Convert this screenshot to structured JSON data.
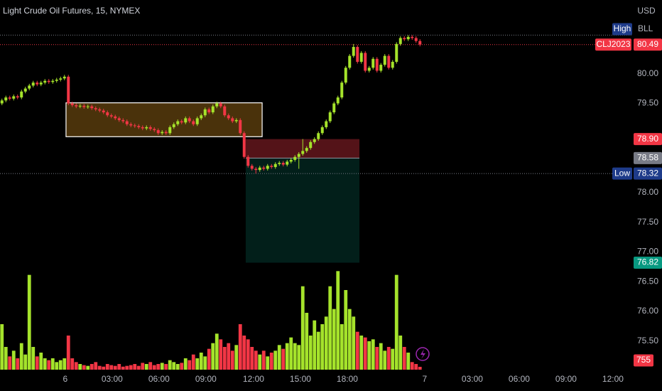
{
  "chart_data": {
    "type": "candlestick",
    "title": "Light Crude Oil Futures, 15, NYMEX",
    "currency": "USD",
    "xlim": [
      0,
      162
    ],
    "xticks": [
      {
        "value": 16.7,
        "label": "6"
      },
      {
        "value": 28.7,
        "label": "03:00"
      },
      {
        "value": 40.7,
        "label": "06:00"
      },
      {
        "value": 52.7,
        "label": "09:00"
      },
      {
        "value": 64.9,
        "label": "12:00"
      },
      {
        "value": 76.9,
        "label": "15:00"
      },
      {
        "value": 88.9,
        "label": "18:00"
      },
      {
        "value": 108.7,
        "label": "7"
      },
      {
        "value": 120.9,
        "label": "03:00"
      },
      {
        "value": 132.9,
        "label": "06:00"
      },
      {
        "value": 144.9,
        "label": "09:00"
      },
      {
        "value": 156.9,
        "label": "12:00"
      }
    ],
    "ylim": [
      75.02,
      81.24
    ],
    "yticks": [
      {
        "value": 75.5,
        "label": "75.50"
      },
      {
        "value": 76,
        "label": "76.00"
      },
      {
        "value": 76.5,
        "label": "76.50"
      },
      {
        "value": 77,
        "label": "77.00"
      },
      {
        "value": 77.5,
        "label": "77.50"
      },
      {
        "value": 78,
        "label": "78.00"
      },
      {
        "value": 79.5,
        "label": "79.50"
      },
      {
        "value": 80,
        "label": "80.00"
      }
    ],
    "up_color": "#a5e32b",
    "down_color": "#f23645",
    "open": [
      79.5,
      79.55,
      79.6,
      79.58,
      79.62,
      79.6,
      79.7,
      79.75,
      79.8,
      79.85,
      79.82,
      79.85,
      79.88,
      79.86,
      79.88,
      79.9,
      79.92,
      79.95,
      79.5,
      79.47,
      79.45,
      79.46,
      79.44,
      79.45,
      79.42,
      79.4,
      79.38,
      79.35,
      79.3,
      79.28,
      79.25,
      79.22,
      79.2,
      79.15,
      79.13,
      79.12,
      79.1,
      79.08,
      79.1,
      79.07,
      79.05,
      79.0,
      79.02,
      79.0,
      79.1,
      79.15,
      79.2,
      79.18,
      79.25,
      79.2,
      79.15,
      79.25,
      79.3,
      79.4,
      79.35,
      79.45,
      79.5,
      79.45,
      79.3,
      79.25,
      79.2,
      79.22,
      79.0,
      78.6,
      78.45,
      78.4,
      78.38,
      78.42,
      78.4,
      78.45,
      78.43,
      78.48,
      78.5,
      78.47,
      78.52,
      78.55,
      78.6,
      78.65,
      78.7,
      78.75,
      78.85,
      78.9,
      79.0,
      79.1,
      79.2,
      79.35,
      79.5,
      79.6,
      79.85,
      80.1,
      80.3,
      80.45,
      80.2,
      80.35,
      80.05,
      80.1,
      80.25,
      80.05,
      80.15,
      80.3,
      80.1,
      80.2,
      80.5,
      80.6,
      80.58,
      80.62,
      80.6,
      80.55
    ],
    "high": [
      79.58,
      79.63,
      79.63,
      79.65,
      79.65,
      79.73,
      79.78,
      79.83,
      79.88,
      79.88,
      79.88,
      79.91,
      79.91,
      79.91,
      79.93,
      79.95,
      79.98,
      79.98,
      79.53,
      79.5,
      79.49,
      79.49,
      79.48,
      79.48,
      79.45,
      79.43,
      79.41,
      79.38,
      79.33,
      79.31,
      79.28,
      79.25,
      79.23,
      79.18,
      79.16,
      79.15,
      79.13,
      79.13,
      79.13,
      79.1,
      79.08,
      79.05,
      79.05,
      79.13,
      79.18,
      79.23,
      79.23,
      79.28,
      79.28,
      79.23,
      79.28,
      79.33,
      79.43,
      79.43,
      79.48,
      79.53,
      79.53,
      79.48,
      79.33,
      79.28,
      79.25,
      79.25,
      79.03,
      78.63,
      78.48,
      78.43,
      78.45,
      78.45,
      78.48,
      78.48,
      78.51,
      78.53,
      78.53,
      78.55,
      78.58,
      78.63,
      78.68,
      78.9,
      78.78,
      78.88,
      78.93,
      79.03,
      79.13,
      79.23,
      79.38,
      79.53,
      79.63,
      79.88,
      80.13,
      80.33,
      80.5,
      80.48,
      80.38,
      80.38,
      80.13,
      80.28,
      80.28,
      80.18,
      80.33,
      80.33,
      80.23,
      80.53,
      80.63,
      80.63,
      80.65,
      80.65,
      80.63,
      80.58
    ],
    "low": [
      79.47,
      79.52,
      79.55,
      79.55,
      79.57,
      79.57,
      79.67,
      79.72,
      79.77,
      79.79,
      79.79,
      79.82,
      79.83,
      79.83,
      79.85,
      79.87,
      79.89,
      79.47,
      79.44,
      79.42,
      79.42,
      79.41,
      79.41,
      79.39,
      79.37,
      79.35,
      79.32,
      79.27,
      79.25,
      79.22,
      79.19,
      79.17,
      79.12,
      79.1,
      79.09,
      79.07,
      79.05,
      79.05,
      79.04,
      79.02,
      78.97,
      78.97,
      78.97,
      78.97,
      79.07,
      79.12,
      79.15,
      79.15,
      79.17,
      79.12,
      79.12,
      79.22,
      79.27,
      79.32,
      79.32,
      79.42,
      79.42,
      79.27,
      79.22,
      79.17,
      79.17,
      78.97,
      78.57,
      78.42,
      78.37,
      78.32,
      78.35,
      78.37,
      78.37,
      78.4,
      78.4,
      78.45,
      78.44,
      78.44,
      78.49,
      78.52,
      78.4,
      78.62,
      78.67,
      78.72,
      78.82,
      78.87,
      78.97,
      79.07,
      79.17,
      79.32,
      79.47,
      79.57,
      79.82,
      80.07,
      80.27,
      80.17,
      80.17,
      80.02,
      80.02,
      80.07,
      80.02,
      80.02,
      80.12,
      80.07,
      80.07,
      80.17,
      80.47,
      80.55,
      80.55,
      80.57,
      80.52,
      80.46
    ],
    "close": [
      79.55,
      79.6,
      79.58,
      79.62,
      79.6,
      79.7,
      79.75,
      79.8,
      79.85,
      79.82,
      79.85,
      79.88,
      79.86,
      79.88,
      79.9,
      79.92,
      79.95,
      79.5,
      79.47,
      79.45,
      79.46,
      79.44,
      79.45,
      79.42,
      79.4,
      79.38,
      79.35,
      79.3,
      79.28,
      79.25,
      79.22,
      79.2,
      79.15,
      79.13,
      79.12,
      79.1,
      79.08,
      79.1,
      79.07,
      79.05,
      79.0,
      79.02,
      79.0,
      79.1,
      79.15,
      79.2,
      79.18,
      79.25,
      79.2,
      79.15,
      79.25,
      79.3,
      79.4,
      79.35,
      79.45,
      79.5,
      79.45,
      79.3,
      79.25,
      79.2,
      79.22,
      79.0,
      78.6,
      78.45,
      78.4,
      78.38,
      78.42,
      78.4,
      78.45,
      78.43,
      78.48,
      78.5,
      78.47,
      78.52,
      78.55,
      78.6,
      78.65,
      78.7,
      78.75,
      78.85,
      78.9,
      79.0,
      79.1,
      79.2,
      79.35,
      79.5,
      79.6,
      79.85,
      80.1,
      80.3,
      80.45,
      80.2,
      80.35,
      80.05,
      80.1,
      80.25,
      80.05,
      80.15,
      80.3,
      80.1,
      80.2,
      80.5,
      80.6,
      80.58,
      80.62,
      80.6,
      80.55,
      80.49
    ],
    "vlim": [
      0,
      30000
    ],
    "volume": [
      12000,
      6000,
      3500,
      5000,
      3000,
      7000,
      4000,
      25000,
      6000,
      3500,
      4500,
      3000,
      2500,
      3000,
      2000,
      2500,
      3000,
      9000,
      3000,
      2000,
      1500,
      1200,
      1000,
      1500,
      2000,
      1000,
      800,
      1500,
      1200,
      1000,
      1500,
      800,
      1000,
      1200,
      1500,
      1000,
      1800,
      1500,
      2000,
      1200,
      1500,
      1800,
      1500,
      2500,
      2000,
      1500,
      1800,
      3000,
      2500,
      4000,
      3000,
      4500,
      3500,
      5500,
      7000,
      9500,
      8000,
      6000,
      7000,
      5000,
      6500,
      12000,
      9000,
      8000,
      6000,
      5000,
      4000,
      5000,
      3500,
      4500,
      5000,
      6500,
      5500,
      7000,
      8500,
      7000,
      6500,
      22000,
      15000,
      9000,
      13000,
      10000,
      12000,
      14000,
      22000,
      16000,
      26000,
      12000,
      21000,
      16000,
      14000,
      10000,
      9000,
      8500,
      7500,
      8000,
      6000,
      7000,
      5000,
      6000,
      5500,
      25000,
      9000,
      6000,
      4500,
      2000,
      1500,
      755
    ],
    "volume_label": {
      "value": 755,
      "label": "755"
    },
    "last_price": {
      "name": "CLJ2023",
      "value": 80.49,
      "label": "80.49"
    },
    "high_marker": {
      "label": "High",
      "value": 80.65,
      "text": "BLL"
    },
    "low_marker": {
      "label": "Low",
      "value": 78.32,
      "value_label": "78.32"
    },
    "box": {
      "x": [
        16.9,
        67.1
      ],
      "y": [
        78.94,
        79.51
      ],
      "color": "#f5a623"
    },
    "position": {
      "x": [
        62.9,
        92
      ],
      "entry": {
        "value": 78.58,
        "label": "78.58"
      },
      "stop": {
        "value": 78.9,
        "label": "78.90"
      },
      "target": {
        "value": 76.82,
        "label": "76.82"
      }
    }
  }
}
